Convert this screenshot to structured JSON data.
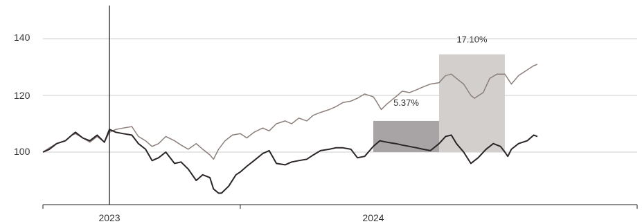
{
  "chart_data": {
    "type": "line",
    "x_range": [
      "2022-10-01",
      "2024-12-31"
    ],
    "ylim": [
      80,
      150
    ],
    "y_ticks": [
      100,
      120,
      140
    ],
    "y_tick_labels": [
      "100",
      "120",
      "140"
    ],
    "x_tick_labels": [
      {
        "date": "2023-01-01",
        "label": "2023"
      },
      {
        "date": "2024-01-01",
        "label": "2024"
      }
    ],
    "x_axis_ticks": [
      "2022-10-01",
      "2023-07-01",
      "2024-12-31"
    ],
    "vertical_marker": "2023-01-01",
    "grid": "horizontal",
    "bars": [
      {
        "x_start": "2024-01-01",
        "x_end": "2024-04-01",
        "value": 111.0,
        "label": "5.37%",
        "color": "#a8a4a5"
      },
      {
        "x_start": "2024-04-01",
        "x_end": "2024-07-01",
        "value": 134.5,
        "label": "17.10%",
        "color": "#d3cfcd"
      }
    ],
    "series": [
      {
        "color": "#8c7f7a",
        "points": [
          [
            "2022-10-01",
            100
          ],
          [
            "2022-10-10",
            101.5
          ],
          [
            "2022-10-20",
            103
          ],
          [
            "2022-11-01",
            104
          ],
          [
            "2022-11-10",
            106
          ],
          [
            "2022-11-15",
            106.5
          ],
          [
            "2022-11-25",
            105
          ],
          [
            "2022-12-05",
            103.5
          ],
          [
            "2022-12-15",
            105.5
          ],
          [
            "2022-12-25",
            103.5
          ],
          [
            "2023-01-01",
            107
          ],
          [
            "2023-01-10",
            108
          ],
          [
            "2023-01-20",
            108.5
          ],
          [
            "2023-02-01",
            109
          ],
          [
            "2023-02-10",
            105.5
          ],
          [
            "2023-02-20",
            104
          ],
          [
            "2023-03-01",
            102
          ],
          [
            "2023-03-10",
            103
          ],
          [
            "2023-03-20",
            105.5
          ],
          [
            "2023-04-01",
            104
          ],
          [
            "2023-04-10",
            102.5
          ],
          [
            "2023-04-20",
            101
          ],
          [
            "2023-05-01",
            103
          ],
          [
            "2023-05-10",
            101
          ],
          [
            "2023-05-20",
            99
          ],
          [
            "2023-05-25",
            97.5
          ],
          [
            "2023-06-01",
            101
          ],
          [
            "2023-06-10",
            104
          ],
          [
            "2023-06-20",
            106
          ],
          [
            "2023-07-01",
            106.5
          ],
          [
            "2023-07-10",
            105
          ],
          [
            "2023-07-20",
            107
          ],
          [
            "2023-08-01",
            108.5
          ],
          [
            "2023-08-10",
            107.5
          ],
          [
            "2023-08-20",
            110
          ],
          [
            "2023-09-01",
            111
          ],
          [
            "2023-09-10",
            110
          ],
          [
            "2023-09-20",
            112
          ],
          [
            "2023-10-01",
            111
          ],
          [
            "2023-10-10",
            113
          ],
          [
            "2023-10-20",
            114
          ],
          [
            "2023-11-01",
            115
          ],
          [
            "2023-11-10",
            116
          ],
          [
            "2023-11-20",
            117.5
          ],
          [
            "2023-12-01",
            118
          ],
          [
            "2023-12-10",
            119
          ],
          [
            "2023-12-20",
            120.5
          ],
          [
            "2024-01-01",
            119.5
          ],
          [
            "2024-01-05",
            118
          ],
          [
            "2024-01-12",
            115
          ],
          [
            "2024-01-20",
            117
          ],
          [
            "2024-02-01",
            119.5
          ],
          [
            "2024-02-10",
            121.5
          ],
          [
            "2024-02-20",
            121
          ],
          [
            "2024-03-01",
            122
          ],
          [
            "2024-03-10",
            123
          ],
          [
            "2024-03-20",
            124
          ],
          [
            "2024-04-01",
            124.5
          ],
          [
            "2024-04-10",
            127
          ],
          [
            "2024-04-18",
            127.5
          ],
          [
            "2024-04-25",
            126
          ],
          [
            "2024-05-05",
            124
          ],
          [
            "2024-05-15",
            120
          ],
          [
            "2024-05-20",
            119
          ],
          [
            "2024-06-01",
            121
          ],
          [
            "2024-06-10",
            126
          ],
          [
            "2024-06-20",
            127.5
          ],
          [
            "2024-07-01",
            127.5
          ],
          [
            "2024-07-10",
            124
          ],
          [
            "2024-07-20",
            127
          ],
          [
            "2024-08-01",
            129
          ],
          [
            "2024-08-10",
            130.5
          ],
          [
            "2024-08-15",
            131
          ]
        ]
      },
      {
        "color": "#2a2426",
        "points": [
          [
            "2022-10-01",
            100
          ],
          [
            "2022-10-10",
            101
          ],
          [
            "2022-10-20",
            103
          ],
          [
            "2022-11-01",
            104
          ],
          [
            "2022-11-10",
            106
          ],
          [
            "2022-11-15",
            107
          ],
          [
            "2022-11-25",
            105
          ],
          [
            "2022-12-05",
            104
          ],
          [
            "2022-12-15",
            106
          ],
          [
            "2022-12-25",
            103.5
          ],
          [
            "2023-01-01",
            108
          ],
          [
            "2023-01-10",
            107
          ],
          [
            "2023-01-20",
            106.5
          ],
          [
            "2023-02-01",
            106
          ],
          [
            "2023-02-10",
            103
          ],
          [
            "2023-02-20",
            101
          ],
          [
            "2023-03-01",
            97
          ],
          [
            "2023-03-10",
            98
          ],
          [
            "2023-03-20",
            100
          ],
          [
            "2023-04-01",
            96
          ],
          [
            "2023-04-10",
            96.5
          ],
          [
            "2023-04-20",
            94
          ],
          [
            "2023-05-01",
            90
          ],
          [
            "2023-05-10",
            92
          ],
          [
            "2023-05-20",
            91
          ],
          [
            "2023-05-25",
            87
          ],
          [
            "2023-06-01",
            85.5
          ],
          [
            "2023-06-05",
            85.5
          ],
          [
            "2023-06-15",
            88
          ],
          [
            "2023-06-25",
            92
          ],
          [
            "2023-07-01",
            93
          ],
          [
            "2023-07-10",
            95
          ],
          [
            "2023-07-20",
            97
          ],
          [
            "2023-08-01",
            99.5
          ],
          [
            "2023-08-10",
            100.5
          ],
          [
            "2023-08-20",
            96
          ],
          [
            "2023-09-01",
            95.5
          ],
          [
            "2023-09-10",
            96.5
          ],
          [
            "2023-09-20",
            97
          ],
          [
            "2023-10-01",
            97.5
          ],
          [
            "2023-10-10",
            99
          ],
          [
            "2023-10-20",
            100.5
          ],
          [
            "2023-11-01",
            101
          ],
          [
            "2023-11-10",
            101.5
          ],
          [
            "2023-11-20",
            101.5
          ],
          [
            "2023-12-01",
            101
          ],
          [
            "2023-12-10",
            98
          ],
          [
            "2023-12-20",
            98.5
          ],
          [
            "2024-01-01",
            102
          ],
          [
            "2024-01-10",
            104
          ],
          [
            "2024-01-20",
            103.5
          ],
          [
            "2024-02-01",
            103
          ],
          [
            "2024-02-10",
            102.5
          ],
          [
            "2024-02-20",
            102
          ],
          [
            "2024-03-01",
            101.5
          ],
          [
            "2024-03-10",
            101
          ],
          [
            "2024-03-20",
            100.5
          ],
          [
            "2024-04-01",
            103
          ],
          [
            "2024-04-10",
            105.5
          ],
          [
            "2024-04-18",
            106
          ],
          [
            "2024-04-25",
            103
          ],
          [
            "2024-05-05",
            100
          ],
          [
            "2024-05-15",
            96
          ],
          [
            "2024-05-25",
            98
          ],
          [
            "2024-06-05",
            101
          ],
          [
            "2024-06-15",
            103
          ],
          [
            "2024-06-25",
            102
          ],
          [
            "2024-07-01",
            100
          ],
          [
            "2024-07-05",
            98.5
          ],
          [
            "2024-07-10",
            101
          ],
          [
            "2024-07-20",
            103
          ],
          [
            "2024-08-01",
            104
          ],
          [
            "2024-08-10",
            106
          ],
          [
            "2024-08-15",
            105.5
          ]
        ]
      }
    ]
  }
}
